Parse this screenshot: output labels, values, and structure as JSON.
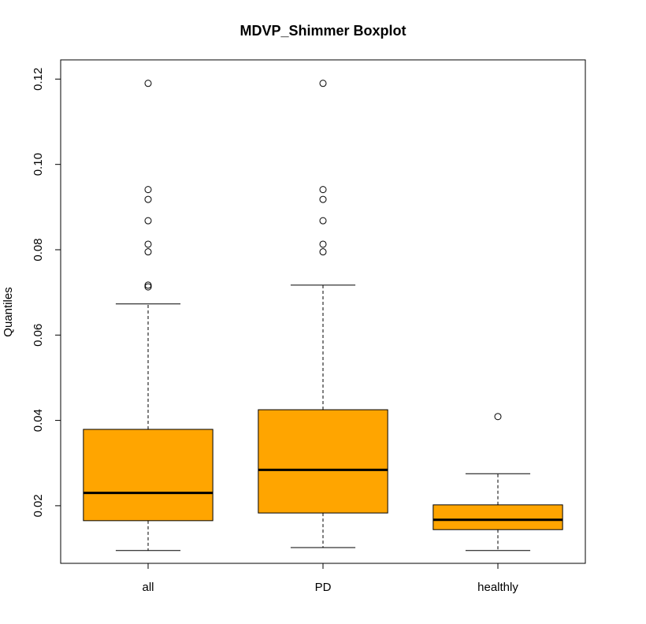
{
  "chart_data": {
    "type": "boxplot",
    "title": "MDVP_Shimmer Boxplot",
    "xlabel": "",
    "ylabel": "Quantiles",
    "ylim": [
      0.0065,
      0.1245
    ],
    "yticks": [
      0.02,
      0.04,
      0.06,
      0.08,
      0.1,
      0.12
    ],
    "ytick_labels": [
      "0.02",
      "0.04",
      "0.06",
      "0.08",
      "0.10",
      "0.12"
    ],
    "grid": false,
    "box_color": "#FFA500",
    "categories": [
      "all",
      "PD",
      "healthly"
    ],
    "boxes": [
      {
        "category": "all",
        "whisker_low": 0.0095,
        "q1": 0.0165,
        "median": 0.023,
        "q3": 0.0379,
        "whisker_high": 0.0673,
        "outliers": [
          0.0713,
          0.0717,
          0.0795,
          0.0813,
          0.0868,
          0.0918,
          0.0941,
          0.119
        ]
      },
      {
        "category": "PD",
        "whisker_low": 0.0102,
        "q1": 0.0183,
        "median": 0.0284,
        "q3": 0.0425,
        "whisker_high": 0.0717,
        "outliers": [
          0.0795,
          0.0813,
          0.0868,
          0.0918,
          0.0941,
          0.119
        ]
      },
      {
        "category": "healthly",
        "whisker_low": 0.0095,
        "q1": 0.0144,
        "median": 0.0167,
        "q3": 0.0202,
        "whisker_high": 0.0275,
        "outliers": [
          0.0409
        ]
      }
    ]
  }
}
